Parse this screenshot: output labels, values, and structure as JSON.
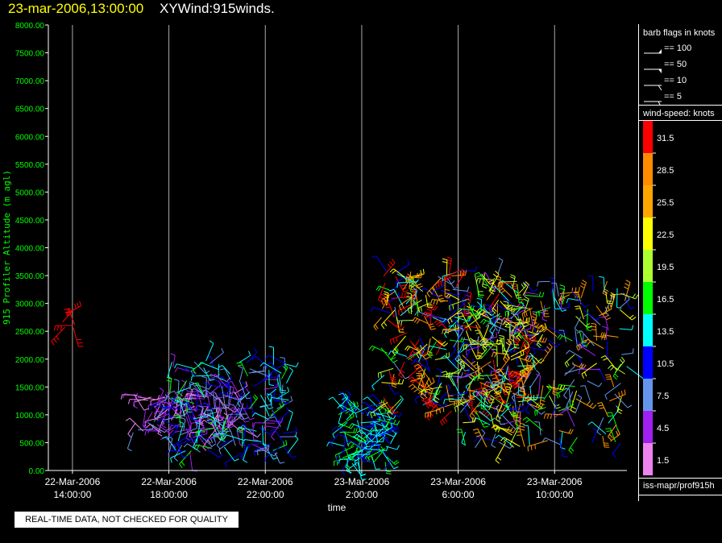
{
  "header": {
    "datetime": "23-mar-2006,13:00:00",
    "title": "XYWind:915winds."
  },
  "chart_data": {
    "type": "scatter",
    "ylabel": "915 Profiler Altitude (m agl)",
    "xlabel": "time",
    "ylim": [
      0,
      8000
    ],
    "yticks": [
      "0.00",
      "500.00",
      "1000.00",
      "1500.00",
      "2000.00",
      "2500.00",
      "3000.00",
      "3500.00",
      "4000.00",
      "4500.00",
      "5000.00",
      "5500.00",
      "6000.00",
      "6500.00",
      "7000.00",
      "7500.00",
      "8000.00"
    ],
    "xticks": [
      {
        "date": "22-Mar-2006",
        "time": "14:00:00"
      },
      {
        "date": "22-Mar-2006",
        "time": "18:00:00"
      },
      {
        "date": "22-Mar-2006",
        "time": "22:00:00"
      },
      {
        "date": "23-Mar-2006",
        "time": "2:00:00"
      },
      {
        "date": "23-Mar-2006",
        "time": "6:00:00"
      },
      {
        "date": "23-Mar-2006",
        "time": "10:00:00"
      }
    ],
    "xrange_hours": [
      13.0,
      37.0
    ],
    "vertical_gridlines": true,
    "colorbar_levels": [
      "1.5",
      "4.5",
      "7.5",
      "10.5",
      "13.5",
      "16.5",
      "19.5",
      "22.5",
      "25.5",
      "28.5",
      "31.5"
    ],
    "colorbar_colors": [
      "#ee82ee",
      "#a020f0",
      "#6495ed",
      "#0000ff",
      "#00ffff",
      "#00ff00",
      "#adff2f",
      "#ffff00",
      "#ffa500",
      "#ff8c00",
      "#ff0000"
    ],
    "series": [
      {
        "hour_range": [
          13.5,
          14.3
        ],
        "alt_range": [
          2500,
          2850
        ],
        "speed_range": [
          30,
          33
        ],
        "count": 6
      },
      {
        "hour_range": [
          16.5,
          21.0
        ],
        "alt_range": [
          600,
          1400
        ],
        "speed_range": [
          1,
          7
        ],
        "count": 120
      },
      {
        "hour_range": [
          18.0,
          23.0
        ],
        "alt_range": [
          300,
          2000
        ],
        "speed_range": [
          4,
          16
        ],
        "count": 180
      },
      {
        "hour_range": [
          25.0,
          27.3
        ],
        "alt_range": [
          100,
          1200
        ],
        "speed_range": [
          9,
          17
        ],
        "count": 110
      },
      {
        "hour_range": [
          26.8,
          33.0
        ],
        "alt_range": [
          1000,
          3600
        ],
        "speed_range": [
          6,
          34
        ],
        "count": 320
      },
      {
        "hour_range": [
          30.0,
          37.0
        ],
        "alt_range": [
          400,
          3400
        ],
        "speed_range": [
          4,
          30
        ],
        "count": 240
      }
    ]
  },
  "legend": {
    "barb_title": "barb flags in knots",
    "barbs": [
      "== 100",
      "== 50",
      "== 10",
      "== 5"
    ],
    "speed_title": "wind-speed: knots",
    "footer": "iss-mapr/prof915h"
  },
  "note": "REAL-TIME DATA, NOT CHECKED FOR QUALITY"
}
